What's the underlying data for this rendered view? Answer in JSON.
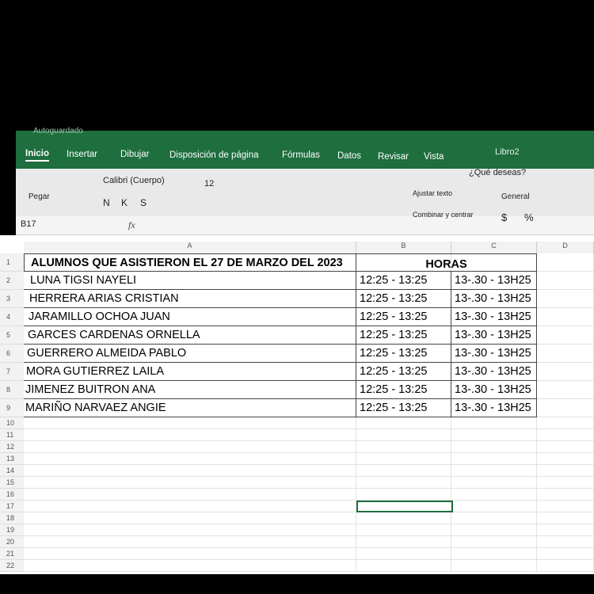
{
  "window": {
    "autosave": "Autoguardado",
    "title": "Libro2",
    "tabs": [
      "Inicio",
      "Insertar",
      "Dibujar",
      "Disposición de página",
      "Fórmulas",
      "Datos",
      "Revisar",
      "Vista"
    ],
    "search": "¿Qué deseas?"
  },
  "toolbar": {
    "paste": "Pegar",
    "font": "Calibri (Cuerpo)",
    "size": "12",
    "bold": "N",
    "italic": "K",
    "underline": "S",
    "wrap": "Ajustar texto",
    "merge": "Combinar y centrar",
    "format": "General",
    "currency": "$",
    "percent": "%"
  },
  "formula_bar": {
    "name_box": "B17",
    "fx": "fx"
  },
  "sheet": {
    "columns": [
      "A",
      "B",
      "C",
      "D"
    ],
    "rows": [
      1,
      2,
      3,
      4,
      5,
      6,
      7,
      8,
      9,
      10,
      11,
      12,
      13,
      14,
      15,
      16,
      17,
      18,
      19,
      20,
      21,
      22
    ],
    "header": [
      "ALUMNOS QUE ASISTIERON EL 27 DE MARZO DEL 2023",
      "HORAS"
    ],
    "records": [
      [
        "LUNA TIGSI NAYELI",
        "12:25 - 13:25",
        "13-.30 - 13H25"
      ],
      [
        "HERRERA ARIAS CRISTIAN",
        "12:25 - 13:25",
        "13-.30 - 13H25"
      ],
      [
        "JARAMILLO OCHOA JUAN",
        "12:25 - 13:25",
        "13-.30 - 13H25"
      ],
      [
        "GARCES CARDENAS ORNELLA",
        "12:25 - 13:25",
        "13-.30 - 13H25"
      ],
      [
        "GUERRERO ALMEIDA PABLO",
        "12:25 - 13:25",
        "13-.30 - 13H25"
      ],
      [
        "MORA GUTIERREZ LAILA",
        "12:25 - 13:25",
        "13-.30 - 13H25"
      ],
      [
        "JIMENEZ BUITRON ANA",
        "12:25 - 13:25",
        "13-.30 - 13H25"
      ],
      [
        "MARIÑO NARVAEZ ANGIE",
        "12:25 - 13:25",
        "13-.30 - 13H25"
      ]
    ]
  }
}
